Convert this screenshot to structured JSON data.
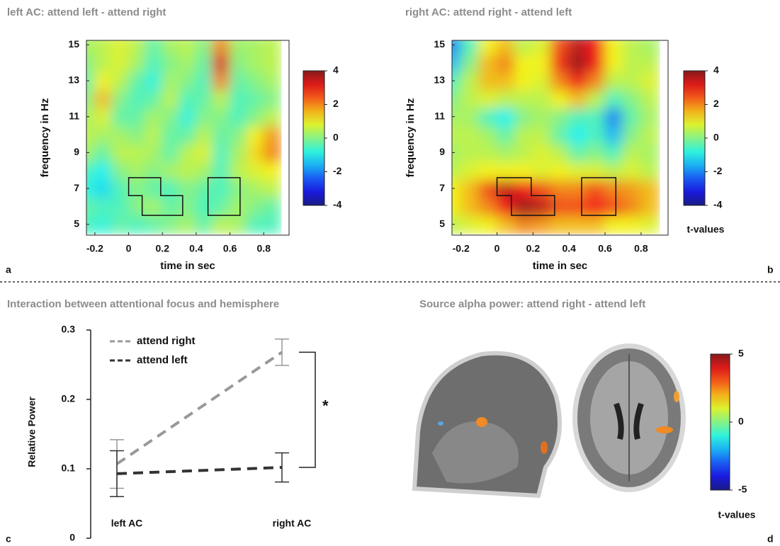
{
  "chart_data": [
    {
      "type": "heatmap",
      "panel": "a",
      "title": "left AC: attend left - attend right",
      "x_label": "time in sec",
      "y_label": "frequency in Hz",
      "x": [
        -0.25,
        -0.15,
        -0.05,
        0.05,
        0.15,
        0.25,
        0.35,
        0.45,
        0.55,
        0.65,
        0.75,
        0.85
      ],
      "y": [
        5,
        6,
        7,
        8,
        9,
        10,
        11,
        12,
        13,
        14,
        15
      ],
      "values": [
        [
          -0.5,
          -0.8,
          -0.3,
          -0.5,
          -0.3,
          0,
          0.3,
          -0.3,
          0.5,
          0.3,
          -0.5,
          -0.5
        ],
        [
          -0.3,
          -0.5,
          -0.5,
          0,
          0.3,
          -0.3,
          0,
          -0.5,
          -0.3,
          0.3,
          0,
          -0.3
        ],
        [
          -0.8,
          -1.2,
          -0.5,
          0,
          -0.3,
          -0.5,
          0,
          -0.3,
          -0.5,
          0,
          0.3,
          0.5
        ],
        [
          -0.5,
          -1.0,
          0,
          0.3,
          0,
          0.3,
          0.5,
          0.3,
          -0.5,
          0.5,
          0.8,
          1.0
        ],
        [
          0.3,
          -0.3,
          0.5,
          0.5,
          0.3,
          -0.3,
          0.5,
          0.8,
          -0.5,
          0.3,
          1.2,
          2.0
        ],
        [
          0.5,
          0.3,
          0.3,
          0,
          0.5,
          -0.3,
          -0.3,
          0.5,
          -0.3,
          0,
          1.0,
          1.8
        ],
        [
          0.3,
          0.8,
          -0.3,
          -0.3,
          0.3,
          0,
          -0.8,
          0,
          0,
          -0.5,
          0,
          0.5
        ],
        [
          0,
          1.5,
          0,
          -0.5,
          -0.3,
          0.5,
          -0.5,
          -0.3,
          0.5,
          -0.5,
          -0.3,
          0
        ],
        [
          -0.3,
          1.0,
          0.5,
          -0.3,
          -0.8,
          0.3,
          0,
          -0.5,
          2.0,
          -0.3,
          0,
          0.3
        ],
        [
          0,
          0.5,
          0.8,
          0.3,
          -0.5,
          0,
          0.3,
          -0.3,
          3.2,
          0,
          0.3,
          0.5
        ],
        [
          0.3,
          0.5,
          0.8,
          0.5,
          -0.3,
          0.3,
          0.5,
          0,
          2.0,
          0.2,
          0.3,
          0.5
        ]
      ],
      "xlim": [
        -0.25,
        0.95
      ],
      "ylim": [
        4.4,
        15.25
      ],
      "xticks": [
        -0.2,
        0,
        0.2,
        0.4,
        0.6,
        0.8
      ],
      "yticks": [
        5,
        7,
        9,
        11,
        13,
        15
      ],
      "clim": [
        -4,
        4
      ],
      "cticks": [
        4,
        2,
        0,
        -2,
        -4
      ],
      "regions": [
        [
          [
            0,
            7.6
          ],
          [
            0.19,
            7.6
          ],
          [
            0.19,
            6.6
          ],
          [
            0.32,
            6.6
          ],
          [
            0.32,
            5.5
          ],
          [
            0.08,
            5.5
          ],
          [
            0.08,
            6.6
          ],
          [
            0,
            6.6
          ]
        ],
        [
          [
            0.47,
            7.6
          ],
          [
            0.66,
            7.6
          ],
          [
            0.66,
            5.5
          ],
          [
            0.47,
            5.5
          ]
        ]
      ]
    },
    {
      "type": "heatmap",
      "panel": "b",
      "title": "right AC: attend right - attend left",
      "x_label": "time in sec",
      "y_label": "frequency in Hz",
      "colorbar_label": "t-values",
      "x": [
        -0.25,
        -0.15,
        -0.05,
        0.05,
        0.15,
        0.25,
        0.35,
        0.45,
        0.55,
        0.65,
        0.75,
        0.85
      ],
      "y": [
        5,
        6,
        7,
        8,
        9,
        10,
        11,
        12,
        13,
        14,
        15
      ],
      "values": [
        [
          0.5,
          0.8,
          1.0,
          1.5,
          2.0,
          1.8,
          1.5,
          1.5,
          1.5,
          1.0,
          1.0,
          0.8
        ],
        [
          1.0,
          1.5,
          2.0,
          3.0,
          3.8,
          3.5,
          2.5,
          2.5,
          3.0,
          2.5,
          2.0,
          1.5
        ],
        [
          1.0,
          1.5,
          2.5,
          3.5,
          3.0,
          2.5,
          2.0,
          2.0,
          2.5,
          2.0,
          1.8,
          1.5
        ],
        [
          0.5,
          0.8,
          1.0,
          1.0,
          1.0,
          0.8,
          1.0,
          0.8,
          0.8,
          0.5,
          0.8,
          0.5
        ],
        [
          0.3,
          0.5,
          0.5,
          0.3,
          0.5,
          0.8,
          0.5,
          -0.3,
          0,
          -0.5,
          0.5,
          0.3
        ],
        [
          0.5,
          0.5,
          0.3,
          -0.3,
          0.5,
          0.5,
          -0.3,
          -1.0,
          -0.5,
          -1.5,
          0,
          0.5
        ],
        [
          0.3,
          0.3,
          -0.5,
          -1.0,
          0,
          0.3,
          0,
          -0.5,
          -0.5,
          -2.0,
          -0.3,
          0.3
        ],
        [
          0,
          0.5,
          0.8,
          0.5,
          0.5,
          0.5,
          1.0,
          1.5,
          0.5,
          -0.5,
          0,
          0.5
        ],
        [
          -0.5,
          0.5,
          1.5,
          1.5,
          1.0,
          0.8,
          2.0,
          3.0,
          2.0,
          0.5,
          0.5,
          0.8
        ],
        [
          -1.5,
          0,
          1.5,
          2.0,
          1.0,
          1.0,
          2.8,
          3.8,
          3.0,
          1.0,
          0.5,
          0.5
        ],
        [
          -2.0,
          -0.5,
          1.0,
          1.5,
          0.5,
          0.8,
          2.5,
          3.5,
          3.0,
          1.0,
          0.5,
          0.3
        ]
      ],
      "xlim": [
        -0.25,
        0.95
      ],
      "ylim": [
        4.4,
        15.25
      ],
      "xticks": [
        -0.2,
        0,
        0.2,
        0.4,
        0.6,
        0.8
      ],
      "yticks": [
        5,
        7,
        9,
        11,
        13,
        15
      ],
      "clim": [
        -4,
        4
      ],
      "cticks": [
        4,
        2,
        0,
        -2,
        -4
      ],
      "regions": [
        [
          [
            0,
            7.6
          ],
          [
            0.19,
            7.6
          ],
          [
            0.19,
            6.6
          ],
          [
            0.32,
            6.6
          ],
          [
            0.32,
            5.5
          ],
          [
            0.08,
            5.5
          ],
          [
            0.08,
            6.6
          ],
          [
            0,
            6.6
          ]
        ],
        [
          [
            0.47,
            7.6
          ],
          [
            0.66,
            7.6
          ],
          [
            0.66,
            5.5
          ],
          [
            0.47,
            5.5
          ]
        ]
      ]
    },
    {
      "type": "line",
      "panel": "c",
      "title": "Interaction between attentional focus and hemisphere",
      "y_label": "Relative Power",
      "categories": [
        "left AC",
        "right AC"
      ],
      "series": [
        {
          "name": "attend right",
          "color": "#999999",
          "values": [
            0.107,
            0.268
          ],
          "errors": [
            0.035,
            0.019
          ]
        },
        {
          "name": "attend left",
          "color": "#333333",
          "values": [
            0.093,
            0.102
          ],
          "errors": [
            0.033,
            0.021
          ]
        }
      ],
      "ylim": [
        0,
        0.3
      ],
      "yticks": [
        0,
        0.1,
        0.2,
        0.3
      ],
      "annotation": "*",
      "legend": "upper left"
    },
    {
      "type": "brain",
      "panel": "d",
      "title": "Source alpha power: attend right - attend left",
      "colorbar_label": "t-values",
      "clim": [
        -5,
        5
      ],
      "cticks": [
        5,
        0,
        -5
      ]
    }
  ]
}
